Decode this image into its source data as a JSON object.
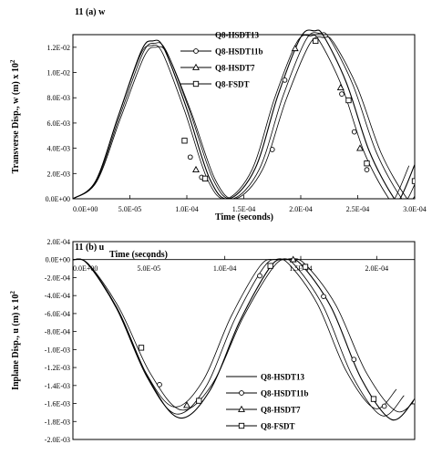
{
  "chart_data": [
    {
      "type": "line",
      "title": "11 (a) w",
      "xlabel": "Time (seconds)",
      "ylabel": "Transverse Disp., w (m) x 10",
      "ylabel_exp": "2",
      "xlim": [
        0,
        0.0003
      ],
      "ylim": [
        0,
        0.013
      ],
      "x_ticks": [
        0,
        5e-05,
        0.0001,
        0.00015,
        0.0002,
        0.00025,
        0.0003
      ],
      "x_tick_labels": [
        "0.0E+00",
        "5.0E-05",
        "1.0E-04",
        "1.5E-04",
        "2.0E-04",
        "2.5E-04",
        "3.0E-04"
      ],
      "y_ticks": [
        0,
        0.002,
        0.004,
        0.006,
        0.008,
        0.01,
        0.012
      ],
      "y_tick_labels": [
        "0.0E+00",
        "2.0E-03",
        "4.0E-03",
        "6.0E-03",
        "8.0E-03",
        "1.0E-02",
        "1.2E-02"
      ],
      "legend_position": "top-right",
      "series": [
        {
          "name": "Q8-HSDT13",
          "marker": "none",
          "x": [
            0,
            2e-05,
            4e-05,
            6e-05,
            7e-05,
            8e-05,
            0.0001,
            0.00012,
            0.000137,
            0.00016,
            0.00018,
            0.0002,
            0.000212,
            0.00022,
            0.00024,
            0.00026,
            0.00028,
            0.000287,
            0.0003
          ],
          "y": [
            0,
            0.0014,
            0.0066,
            0.0117,
            0.0125,
            0.0119,
            0.0071,
            0.0016,
            0,
            0.0024,
            0.0082,
            0.0128,
            0.0133,
            0.0129,
            0.0092,
            0.0038,
            0.0003,
            0,
            0.0027
          ]
        },
        {
          "name": "Q8-HSDT11b",
          "marker": "circle",
          "x": [
            0.000103,
            0.000113,
            0.000175,
            0.000186,
            0.000236,
            0.000247,
            0.000258
          ],
          "y": [
            0.0033,
            0.0017,
            0.0039,
            0.0094,
            0.0083,
            0.0053,
            0.0023
          ]
        },
        {
          "name": "Q8-HSDT7",
          "marker": "triangle",
          "x": [
            0.000108,
            0.000195,
            0.000235,
            0.000252
          ],
          "y": [
            0.0023,
            0.0119,
            0.0088,
            0.004
          ]
        },
        {
          "name": "Q8-FSDT",
          "marker": "square",
          "x": [
            9.8e-05,
            0.000116,
            0.000213,
            0.000242,
            0.000258,
            0.0003
          ],
          "y": [
            0.0046,
            0.0016,
            0.0125,
            0.0078,
            0.0028,
            0.0014
          ]
        }
      ]
    },
    {
      "type": "line",
      "title": "11 (b) u",
      "xlabel": "Time (seconds)",
      "ylabel": "Inplane Disp., u (m) x 10",
      "ylabel_exp": "2",
      "xlim": [
        0,
        0.000225
      ],
      "ylim": [
        -0.002,
        0.0002
      ],
      "x_ticks": [
        0,
        5e-05,
        0.0001,
        0.00015,
        0.0002
      ],
      "x_tick_labels": [
        "0.0E+00",
        "5.0E-05",
        "1.0E-04",
        "1.5E-04",
        "2.0E-04"
      ],
      "y_ticks": [
        0.0002,
        0,
        -0.0002,
        -0.0004,
        -0.0006,
        -0.0008,
        -0.001,
        -0.0012,
        -0.0014,
        -0.0016,
        -0.0018,
        -0.002
      ],
      "y_tick_labels": [
        "2.0E-04",
        "0.0E+00",
        "-2.0E-04",
        "-4.0E-04",
        "-6.0E-04",
        "-8.0E-04",
        "-1.0E-03",
        "-1.2E-03",
        "-1.4E-03",
        "-1.6E-03",
        "-1.8E-03",
        "-2.0E-03"
      ],
      "legend_position": "bottom-right",
      "series": [
        {
          "name": "Q8-HSDT13",
          "marker": "none",
          "x": [
            0,
            1e-05,
            3e-05,
            5e-05,
            7e-05,
            9e-05,
            0.00011,
            0.00013,
            0.00014,
            0.00015,
            0.00017,
            0.00019,
            0.00021,
            0.000225
          ],
          "y": [
            0,
            -5e-05,
            -0.00057,
            -0.00133,
            -0.00176,
            -0.00146,
            -0.00068,
            -8e-05,
            0,
            -5e-05,
            -0.00053,
            -0.00133,
            -0.00178,
            -0.00155
          ]
        },
        {
          "name": "Q8-HSDT11b",
          "marker": "circle",
          "x": [
            5.7e-05,
            0.000123,
            0.000165,
            0.000185,
            0.000205
          ],
          "y": [
            -0.00139,
            -0.00018,
            -0.00041,
            -0.00111,
            -0.00163
          ]
        },
        {
          "name": "Q8-HSDT7",
          "marker": "triangle",
          "x": [
            7.5e-05,
            0.000145,
            0.000225
          ],
          "y": [
            -0.00162,
            0,
            -0.00158
          ]
        },
        {
          "name": "Q8-FSDT",
          "marker": "square",
          "x": [
            4.5e-05,
            8.3e-05,
            0.00013,
            0.000153,
            0.000198
          ],
          "y": [
            -0.00098,
            -0.00157,
            -7e-05,
            -8e-05,
            -0.00155
          ]
        }
      ]
    }
  ]
}
